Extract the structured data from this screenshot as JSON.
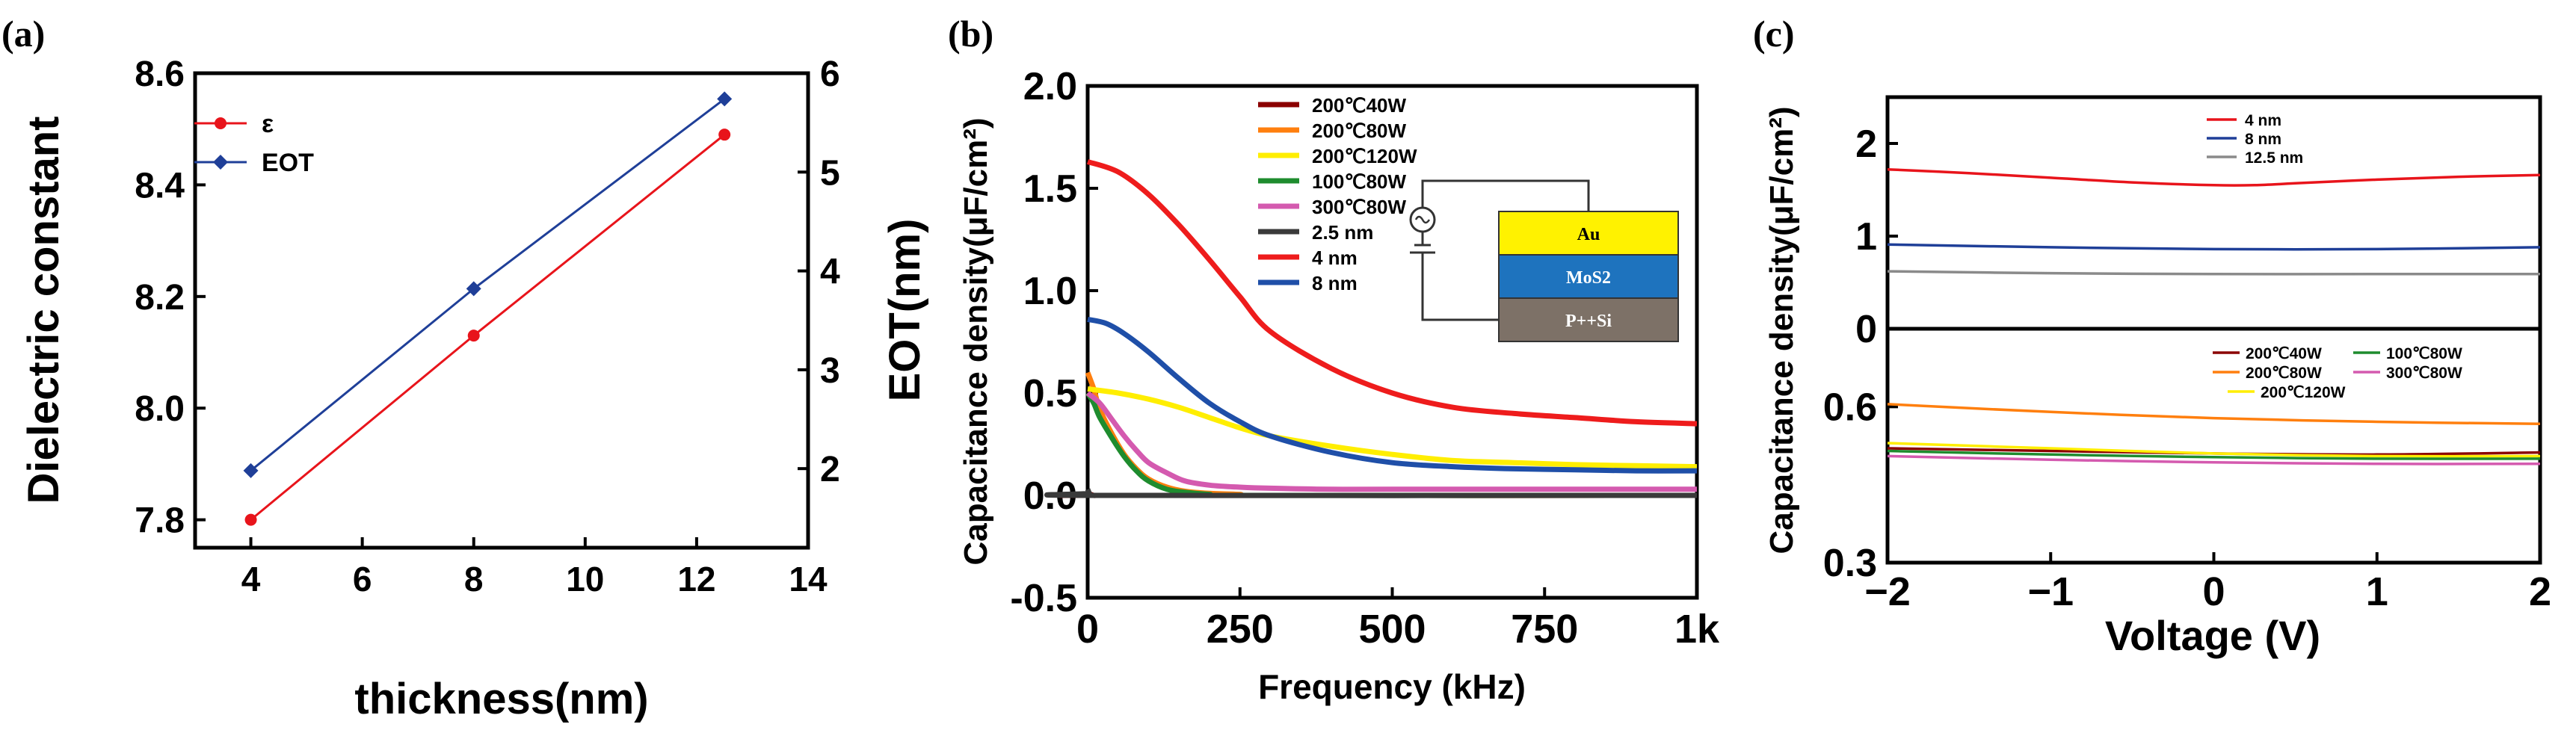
{
  "panel_labels": [
    "(a)",
    "(b)",
    "(c)"
  ],
  "chart_data": [
    {
      "type": "line",
      "panel": "(a)",
      "xlabel": "thickness(nm)",
      "ylabel": "Dielectric constant",
      "y2label": "EOT(nm)",
      "xlim": [
        3,
        14
      ],
      "ylim": [
        7.75,
        8.6
      ],
      "y2lim": [
        1.2,
        6.0
      ],
      "xticks": [
        4,
        6,
        8,
        10,
        12,
        14
      ],
      "yticks": [
        7.8,
        8.0,
        8.2,
        8.4,
        8.6
      ],
      "y2ticks": [
        2,
        3,
        4,
        5,
        6
      ],
      "ytick_labels": [
        "7.8",
        "8.0",
        "8.2",
        "8.4",
        "8.6"
      ],
      "legend_position": "top-left",
      "series": [
        {
          "name": "ε",
          "axis": "left",
          "color": "#e8141b",
          "marker": "circle",
          "x": [
            4,
            8,
            12.5
          ],
          "values": [
            7.8,
            8.13,
            8.49
          ]
        },
        {
          "name": "EOT",
          "axis": "right",
          "color": "#1f3f98",
          "marker": "diamond",
          "x": [
            4,
            8,
            12.5
          ],
          "values": [
            1.98,
            3.82,
            5.74
          ]
        }
      ]
    },
    {
      "type": "line",
      "panel": "(b)",
      "xlabel": "Frequency (kHz)",
      "ylabel": "Capacitance density(μF/cm²)",
      "xlim": [
        0,
        1000
      ],
      "ylim": [
        -0.5,
        2.0
      ],
      "xticks": [
        0,
        250,
        500,
        750,
        1000
      ],
      "xtick_labels": [
        "0",
        "250",
        "500",
        "750",
        "1k"
      ],
      "yticks": [
        -0.5,
        0.0,
        0.5,
        1.0,
        1.5,
        2.0
      ],
      "ytick_labels": [
        "-0.5",
        "0.0",
        "0.5",
        "1.0",
        "1.5",
        "2.0"
      ],
      "legend_position": "top-center",
      "inset": {
        "layers": [
          "Au",
          "MoS2",
          "P++Si"
        ],
        "colors": [
          "#fff200",
          "#1e73be",
          "#7d7167"
        ]
      },
      "series": [
        {
          "name": "200℃40W",
          "color": "#8b0000",
          "x": [
            0,
            5,
            10,
            15,
            20,
            30,
            1000
          ],
          "values": [
            0.01,
            0.005,
            0.0,
            0.0,
            0.0,
            0.0,
            0.0
          ]
        },
        {
          "name": "200℃80W",
          "color": "#ff7f0e",
          "x": [
            0,
            10,
            20,
            40,
            60,
            80,
            100,
            130,
            160,
            200,
            250,
            300,
            1000
          ],
          "values": [
            0.6,
            0.52,
            0.42,
            0.3,
            0.2,
            0.13,
            0.08,
            0.04,
            0.02,
            0.01,
            0.005,
            0.0,
            0.0
          ]
        },
        {
          "name": "200℃120W",
          "color": "#ffee00",
          "x": [
            0,
            50,
            100,
            150,
            200,
            250,
            300,
            400,
            500,
            600,
            700,
            800,
            900,
            1000
          ],
          "values": [
            0.52,
            0.5,
            0.47,
            0.43,
            0.38,
            0.33,
            0.29,
            0.24,
            0.2,
            0.17,
            0.16,
            0.15,
            0.145,
            0.14
          ]
        },
        {
          "name": "100℃80W",
          "color": "#1e8c2e",
          "x": [
            0,
            10,
            20,
            40,
            60,
            80,
            100,
            130,
            160,
            200,
            250,
            1000
          ],
          "values": [
            0.5,
            0.45,
            0.38,
            0.28,
            0.19,
            0.12,
            0.07,
            0.03,
            0.015,
            0.005,
            0.0,
            0.0
          ]
        },
        {
          "name": "300℃80W",
          "color": "#d45aaf",
          "x": [
            0,
            20,
            40,
            60,
            80,
            100,
            130,
            160,
            200,
            250,
            300,
            400,
            500,
            1000
          ],
          "values": [
            0.5,
            0.45,
            0.37,
            0.29,
            0.22,
            0.16,
            0.11,
            0.07,
            0.05,
            0.04,
            0.035,
            0.03,
            0.03,
            0.03
          ]
        },
        {
          "name": "2.5 nm",
          "color": "#3a3a3a",
          "x": [
            0,
            3,
            8,
            1000
          ],
          "values": [
            0.03,
            0.01,
            0.0,
            0.0
          ]
        },
        {
          "name": "4 nm",
          "color": "#ee1c1c",
          "x": [
            0,
            50,
            100,
            150,
            200,
            250,
            300,
            400,
            500,
            600,
            700,
            800,
            900,
            1000
          ],
          "values": [
            1.63,
            1.58,
            1.47,
            1.32,
            1.15,
            0.97,
            0.8,
            0.62,
            0.5,
            0.43,
            0.4,
            0.38,
            0.36,
            0.35
          ]
        },
        {
          "name": "8 nm",
          "color": "#1f4fa8",
          "x": [
            0,
            30,
            60,
            100,
            150,
            200,
            250,
            300,
            400,
            500,
            600,
            700,
            800,
            900,
            1000
          ],
          "values": [
            0.86,
            0.84,
            0.79,
            0.7,
            0.57,
            0.45,
            0.36,
            0.29,
            0.21,
            0.16,
            0.14,
            0.13,
            0.125,
            0.12,
            0.12
          ]
        }
      ]
    },
    {
      "type": "line",
      "panel": "(c) top",
      "ylabel": "Capacitance density(μF/cm²)",
      "xlim": [
        -2,
        2
      ],
      "ylim": [
        0,
        2.5
      ],
      "yticks": [
        0,
        1,
        2
      ],
      "ytick_labels": [
        "0",
        "1",
        "2"
      ],
      "legend_position": "top-center",
      "series": [
        {
          "name": "4 nm",
          "color": "#e8141b",
          "x": [
            -2,
            -1.5,
            -1,
            -0.5,
            0,
            0.25,
            0.5,
            1,
            1.5,
            2
          ],
          "values": [
            1.72,
            1.68,
            1.63,
            1.58,
            1.55,
            1.55,
            1.57,
            1.61,
            1.64,
            1.66
          ]
        },
        {
          "name": "8 nm",
          "color": "#1f3f98",
          "x": [
            -2,
            -1,
            0,
            1,
            2
          ],
          "values": [
            0.91,
            0.88,
            0.86,
            0.86,
            0.88
          ]
        },
        {
          "name": "12.5 nm",
          "color": "#8a8a8a",
          "x": [
            -2,
            -1,
            0,
            1,
            2
          ],
          "values": [
            0.62,
            0.6,
            0.59,
            0.59,
            0.59
          ]
        }
      ]
    },
    {
      "type": "line",
      "panel": "(c) bottom",
      "xlabel": "Voltage (V)",
      "xlim": [
        -2,
        2
      ],
      "ylim": [
        0.3,
        0.75
      ],
      "xticks": [
        -2,
        -1,
        0,
        1,
        2
      ],
      "xtick_labels": [
        "−2",
        "−1",
        "0",
        "1",
        "2"
      ],
      "yticks": [
        0.3,
        0.6
      ],
      "ytick_labels": [
        "0.3",
        "0.6"
      ],
      "legend_position": "top-center",
      "series": [
        {
          "name": "200℃40W",
          "color": "#8b0000",
          "x": [
            -2,
            -1,
            0,
            1,
            2
          ],
          "values": [
            0.52,
            0.515,
            0.51,
            0.508,
            0.512
          ]
        },
        {
          "name": "200℃80W",
          "color": "#ff7f0e",
          "x": [
            -2,
            -1,
            0,
            1,
            2
          ],
          "values": [
            0.605,
            0.59,
            0.578,
            0.571,
            0.567
          ]
        },
        {
          "name": "200℃120W",
          "color": "#ffee00",
          "x": [
            -2,
            -1,
            0,
            1,
            2
          ],
          "values": [
            0.53,
            0.52,
            0.51,
            0.505,
            0.505
          ]
        },
        {
          "name": "100℃80W",
          "color": "#1e8c2e",
          "x": [
            -2,
            -1,
            0,
            1,
            2
          ],
          "values": [
            0.515,
            0.508,
            0.503,
            0.5,
            0.5
          ]
        },
        {
          "name": "300℃80W",
          "color": "#d45aaf",
          "x": [
            -2,
            -1,
            0,
            1,
            2
          ],
          "values": [
            0.505,
            0.498,
            0.493,
            0.49,
            0.49
          ]
        }
      ]
    }
  ]
}
